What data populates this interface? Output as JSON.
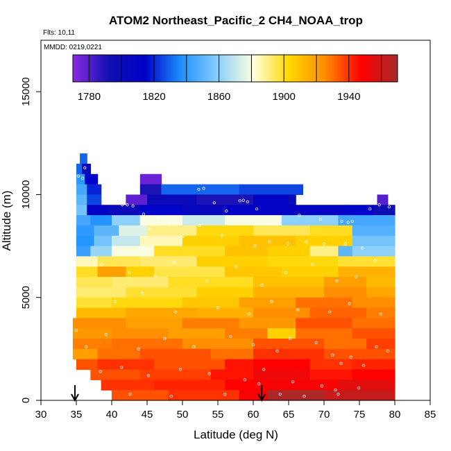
{
  "chart_data": {
    "type": "heatmap",
    "title": "ATOM2 Northeast_Pacific_2 CH4_NOAA_trop",
    "flights_label": "Flts: 10,11",
    "date_label": "MMDD: 0219,0221",
    "xlabel": "Latitude (deg N)",
    "ylabel": "Altitude (m)",
    "xlim": [
      30,
      85
    ],
    "ylim": [
      0,
      17500
    ],
    "xticks": [
      30,
      35,
      40,
      45,
      50,
      55,
      60,
      65,
      70,
      75,
      80,
      85
    ],
    "yticks": [
      0,
      5000,
      10000,
      15000
    ],
    "colorbar": {
      "range": [
        1770,
        1970
      ],
      "ticks": [
        1780,
        1820,
        1860,
        1900,
        1940
      ],
      "colors": [
        "#8B2BE2",
        "#1010B0",
        "#0000C8",
        "#1E90FF",
        "#87CEFA",
        "#FFFFE0",
        "#FFD700",
        "#FF8C00",
        "#FF0000",
        "#A52A2A"
      ]
    },
    "cell_size": {
      "lat": 1.0,
      "alt": 500
    },
    "bands": [
      {
        "alt": 11750,
        "segments": [
          [
            35.5,
            36.5,
            1830
          ]
        ]
      },
      {
        "alt": 11250,
        "segments": [
          [
            35.0,
            35.8,
            1830
          ],
          [
            35.8,
            37.0,
            1800
          ]
        ]
      },
      {
        "alt": 10750,
        "segments": [
          [
            35.0,
            36.2,
            1840
          ],
          [
            36.2,
            38.0,
            1815
          ],
          [
            44.0,
            47.0,
            1776
          ]
        ]
      },
      {
        "alt": 10250,
        "segments": [
          [
            35.0,
            36.5,
            1845
          ],
          [
            36.5,
            38.5,
            1820
          ],
          [
            44.0,
            47.0,
            1790
          ],
          [
            47.0,
            58.0,
            1830
          ],
          [
            58.0,
            67.0,
            1825
          ]
        ]
      },
      {
        "alt": 9750,
        "segments": [
          [
            35.0,
            36.5,
            1850
          ],
          [
            36.5,
            38.5,
            1825
          ],
          [
            42.0,
            45.0,
            1778
          ],
          [
            45.0,
            52.0,
            1800
          ],
          [
            52.0,
            60.0,
            1790
          ],
          [
            60.0,
            65.0,
            1810
          ],
          [
            65.0,
            66.0,
            1800
          ],
          [
            77.5,
            79.0,
            1780
          ]
        ]
      },
      {
        "alt": 9250,
        "segments": [
          [
            35.0,
            36.5,
            1855
          ],
          [
            36.5,
            39.5,
            1810
          ],
          [
            39.5,
            44.0,
            1800
          ],
          [
            44.0,
            50.0,
            1815
          ],
          [
            50.0,
            56.0,
            1805
          ],
          [
            56.0,
            65.0,
            1812
          ],
          [
            65.0,
            73.0,
            1808
          ],
          [
            73.0,
            77.0,
            1815
          ],
          [
            77.0,
            80.0,
            1795
          ]
        ]
      },
      {
        "alt": 8750,
        "segments": [
          [
            35.0,
            37.0,
            1845
          ],
          [
            37.0,
            40.0,
            1838
          ],
          [
            40.0,
            44.0,
            1860
          ],
          [
            44.0,
            50.0,
            1880
          ],
          [
            50.0,
            56.0,
            1872
          ],
          [
            56.0,
            64.0,
            1880
          ],
          [
            64.0,
            72.0,
            1860
          ],
          [
            72.0,
            80.0,
            1845
          ]
        ]
      },
      {
        "alt": 8250,
        "segments": [
          [
            35.0,
            37.5,
            1840
          ],
          [
            37.5,
            41.0,
            1850
          ],
          [
            41.0,
            45.0,
            1875
          ],
          [
            45.0,
            52.0,
            1890
          ],
          [
            52.0,
            60.0,
            1902
          ],
          [
            60.0,
            68.0,
            1895
          ],
          [
            68.0,
            74.0,
            1900
          ],
          [
            74.0,
            80.0,
            1848
          ]
        ]
      },
      {
        "alt": 7750,
        "segments": [
          [
            35.0,
            37.5,
            1838
          ],
          [
            37.5,
            40.0,
            1855
          ],
          [
            40.0,
            44.0,
            1870
          ],
          [
            44.0,
            50.0,
            1885
          ],
          [
            50.0,
            58.0,
            1905
          ],
          [
            58.0,
            66.0,
            1910
          ],
          [
            66.0,
            74.0,
            1905
          ],
          [
            74.0,
            80.0,
            1855
          ]
        ]
      },
      {
        "alt": 7250,
        "segments": [
          [
            35.0,
            37.0,
            1842
          ],
          [
            37.0,
            40.0,
            1862
          ],
          [
            40.0,
            46.0,
            1880
          ],
          [
            46.0,
            56.0,
            1900
          ],
          [
            56.0,
            62.0,
            1910
          ],
          [
            62.0,
            68.0,
            1905
          ],
          [
            68.0,
            72.0,
            1890
          ],
          [
            72.0,
            74.0,
            1850
          ],
          [
            74.0,
            80.0,
            1860
          ]
        ]
      },
      {
        "alt": 6750,
        "segments": [
          [
            35.0,
            38.0,
            1885
          ],
          [
            38.0,
            44.0,
            1895
          ],
          [
            44.0,
            52.0,
            1892
          ],
          [
            52.0,
            62.0,
            1905
          ],
          [
            62.0,
            72.0,
            1902
          ],
          [
            72.0,
            80.0,
            1898
          ]
        ]
      },
      {
        "alt": 6250,
        "segments": [
          [
            35.0,
            38.0,
            1900
          ],
          [
            38.0,
            42.0,
            1920
          ],
          [
            42.0,
            46.0,
            1905
          ],
          [
            46.0,
            56.0,
            1896
          ],
          [
            56.0,
            64.0,
            1908
          ],
          [
            64.0,
            72.0,
            1905
          ],
          [
            72.0,
            80.0,
            1915
          ]
        ]
      },
      {
        "alt": 5750,
        "segments": [
          [
            35.0,
            40.0,
            1895
          ],
          [
            40.0,
            48.0,
            1892
          ],
          [
            48.0,
            60.0,
            1900
          ],
          [
            60.0,
            70.0,
            1910
          ],
          [
            70.0,
            76.0,
            1920
          ],
          [
            76.0,
            80.0,
            1912
          ]
        ]
      },
      {
        "alt": 5250,
        "segments": [
          [
            35.0,
            42.0,
            1892
          ],
          [
            42.0,
            52.0,
            1898
          ],
          [
            52.0,
            60.0,
            1905
          ],
          [
            60.0,
            70.0,
            1915
          ],
          [
            70.0,
            76.0,
            1925
          ],
          [
            76.0,
            80.0,
            1918
          ]
        ]
      },
      {
        "alt": 4750,
        "segments": [
          [
            35.0,
            40.0,
            1898
          ],
          [
            40.0,
            50.0,
            1902
          ],
          [
            50.0,
            58.0,
            1908
          ],
          [
            58.0,
            66.0,
            1920
          ],
          [
            66.0,
            74.0,
            1930
          ],
          [
            74.0,
            80.0,
            1925
          ]
        ]
      },
      {
        "alt": 4250,
        "segments": [
          [
            35.0,
            42.0,
            1912
          ],
          [
            42.0,
            52.0,
            1918
          ],
          [
            52.0,
            60.0,
            1915
          ],
          [
            60.0,
            68.0,
            1925
          ],
          [
            68.0,
            76.0,
            1932
          ],
          [
            76.0,
            80.0,
            1928
          ]
        ]
      },
      {
        "alt": 3750,
        "segments": [
          [
            34.5,
            42.0,
            1925
          ],
          [
            42.0,
            50.0,
            1920
          ],
          [
            50.0,
            58.0,
            1928
          ],
          [
            58.0,
            66.0,
            1922
          ],
          [
            66.0,
            74.0,
            1935
          ],
          [
            74.0,
            80.0,
            1930
          ]
        ]
      },
      {
        "alt": 3250,
        "segments": [
          [
            34.5,
            40.0,
            1922
          ],
          [
            40.0,
            48.0,
            1925
          ],
          [
            48.0,
            56.0,
            1920
          ],
          [
            56.0,
            62.0,
            1928
          ],
          [
            62.0,
            66.0,
            1905
          ],
          [
            66.0,
            74.0,
            1930
          ],
          [
            74.0,
            80.0,
            1935
          ]
        ]
      },
      {
        "alt": 2750,
        "segments": [
          [
            34.5,
            40.0,
            1928
          ],
          [
            40.0,
            50.0,
            1930
          ],
          [
            50.0,
            60.0,
            1925
          ],
          [
            60.0,
            70.0,
            1935
          ],
          [
            70.0,
            76.0,
            1930
          ],
          [
            76.0,
            80.0,
            1938
          ]
        ]
      },
      {
        "alt": 2250,
        "segments": [
          [
            34.5,
            38.0,
            1920
          ],
          [
            38.0,
            44.0,
            1930
          ],
          [
            44.0,
            54.0,
            1935
          ],
          [
            54.0,
            60.0,
            1930
          ],
          [
            60.0,
            70.0,
            1940
          ],
          [
            70.0,
            80.0,
            1935
          ]
        ]
      },
      {
        "alt": 1750,
        "segments": [
          [
            35.0,
            38.0,
            1935
          ],
          [
            38.0,
            46.0,
            1940
          ],
          [
            46.0,
            56.0,
            1935
          ],
          [
            56.0,
            60.0,
            1945
          ],
          [
            60.0,
            68.0,
            1948
          ],
          [
            68.0,
            74.0,
            1940
          ],
          [
            74.0,
            80.0,
            1942
          ]
        ]
      },
      {
        "alt": 1250,
        "segments": [
          [
            37.0,
            44.0,
            1935
          ],
          [
            44.0,
            54.0,
            1938
          ],
          [
            54.0,
            60.0,
            1945
          ],
          [
            60.0,
            68.0,
            1952
          ],
          [
            68.0,
            74.0,
            1945
          ],
          [
            74.0,
            80.0,
            1948
          ]
        ]
      },
      {
        "alt": 750,
        "segments": [
          [
            38.5,
            46.0,
            1940
          ],
          [
            46.0,
            56.0,
            1942
          ],
          [
            56.0,
            62.0,
            1948
          ],
          [
            62.0,
            72.0,
            1950
          ],
          [
            72.0,
            80.0,
            1955
          ]
        ]
      },
      {
        "alt": 250,
        "segments": [
          [
            40.0,
            48.0,
            1935
          ],
          [
            48.0,
            58.0,
            1940
          ],
          [
            58.0,
            62.0,
            1950
          ],
          [
            62.0,
            70.0,
            1968
          ],
          [
            70.0,
            80.0,
            1962
          ]
        ]
      }
    ],
    "obs_points": [
      [
        35.3,
        10900
      ],
      [
        35.9,
        10800
      ],
      [
        36.2,
        11300
      ],
      [
        41.5,
        9500
      ],
      [
        42.2,
        9500
      ],
      [
        43.0,
        9450
      ],
      [
        44.5,
        9050
      ],
      [
        45.4,
        8300
      ],
      [
        46.6,
        8900
      ],
      [
        48.2,
        8600
      ],
      [
        52.3,
        10250
      ],
      [
        53.0,
        10300
      ],
      [
        54.5,
        9600
      ],
      [
        56.2,
        9200
      ],
      [
        58.1,
        9700
      ],
      [
        58.6,
        9720
      ],
      [
        59.2,
        9650
      ],
      [
        60.5,
        9300
      ],
      [
        63.0,
        8600
      ],
      [
        66.5,
        9000
      ],
      [
        69.5,
        8800
      ],
      [
        72.5,
        8700
      ],
      [
        73.4,
        8650
      ],
      [
        74.0,
        8700
      ],
      [
        76.5,
        9300
      ],
      [
        77.8,
        9500
      ],
      [
        79.2,
        9400
      ],
      [
        50.1,
        8000
      ],
      [
        52.4,
        8500
      ],
      [
        55.6,
        8000
      ],
      [
        60.2,
        7500
      ],
      [
        62.3,
        7700
      ],
      [
        64.9,
        7600
      ],
      [
        67.5,
        7700
      ],
      [
        70.0,
        7600
      ],
      [
        73.0,
        7600
      ],
      [
        75.4,
        7400
      ],
      [
        38.6,
        6600
      ],
      [
        42.5,
        6200
      ],
      [
        46.1,
        6000
      ],
      [
        48.8,
        6700
      ],
      [
        53.5,
        5800
      ],
      [
        57.6,
        6500
      ],
      [
        61.2,
        5600
      ],
      [
        64.6,
        6200
      ],
      [
        68.4,
        6600
      ],
      [
        71.8,
        5800
      ],
      [
        74.5,
        6000
      ],
      [
        77.2,
        6800
      ],
      [
        40.5,
        4800
      ],
      [
        44.3,
        5200
      ],
      [
        49.0,
        4300
      ],
      [
        55.0,
        4500
      ],
      [
        59.4,
        4200
      ],
      [
        62.6,
        4800
      ],
      [
        66.3,
        4400
      ],
      [
        70.8,
        4300
      ],
      [
        73.6,
        4700
      ],
      [
        78.0,
        4200
      ],
      [
        35.0,
        3400
      ],
      [
        36.4,
        2600
      ],
      [
        39.2,
        3200
      ],
      [
        43.8,
        2500
      ],
      [
        47.5,
        3000
      ],
      [
        51.6,
        2600
      ],
      [
        56.8,
        3100
      ],
      [
        60.0,
        2700
      ],
      [
        63.4,
        2400
      ],
      [
        65.2,
        3000
      ],
      [
        68.9,
        2800
      ],
      [
        71.2,
        2200
      ],
      [
        72.4,
        1800
      ],
      [
        73.8,
        2100
      ],
      [
        75.6,
        1700
      ],
      [
        77.4,
        2600
      ],
      [
        79.0,
        2400
      ],
      [
        38.4,
        1400
      ],
      [
        41.4,
        1600
      ],
      [
        45.2,
        1200
      ],
      [
        49.7,
        1500
      ],
      [
        53.8,
        1300
      ],
      [
        58.8,
        1000
      ],
      [
        61.5,
        1500
      ],
      [
        65.6,
        900
      ],
      [
        69.7,
        700
      ],
      [
        71.6,
        500
      ],
      [
        72.0,
        300
      ],
      [
        42.6,
        300
      ],
      [
        48.4,
        200
      ],
      [
        56.0,
        300
      ],
      [
        60.8,
        800
      ],
      [
        63.8,
        300
      ],
      [
        67.2,
        200
      ],
      [
        74.9,
        600
      ]
    ],
    "arrows_lat": [
      34.8,
      61.2
    ]
  }
}
